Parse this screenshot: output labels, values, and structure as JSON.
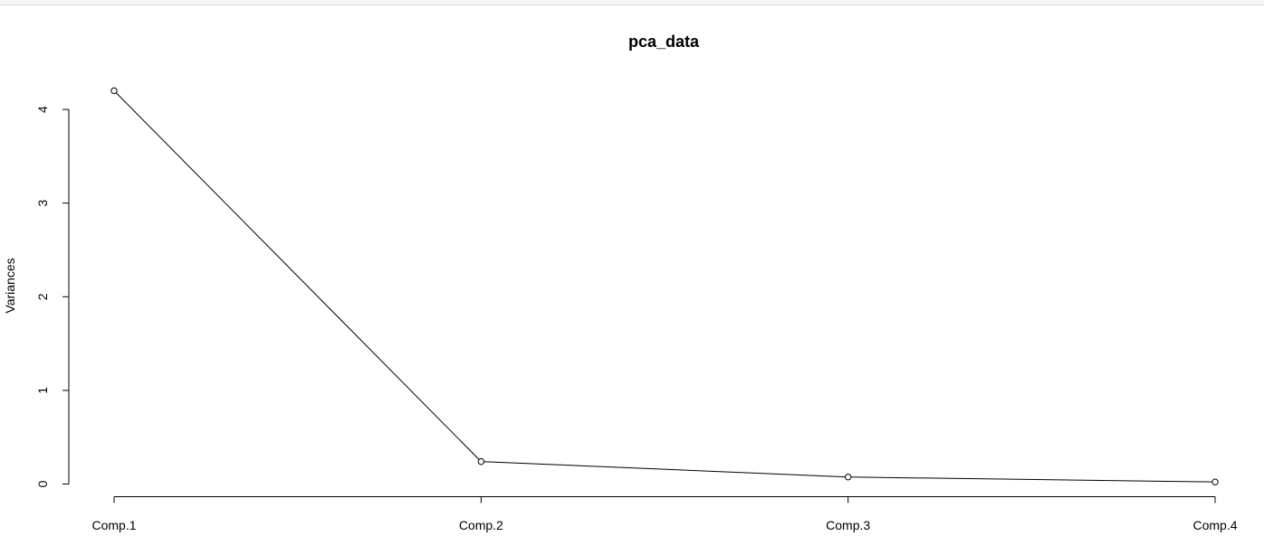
{
  "chart_data": {
    "type": "line",
    "title": "pca_data",
    "xlabel": "",
    "ylabel": "Variances",
    "categories": [
      "Comp.1",
      "Comp.2",
      "Comp.3",
      "Comp.4"
    ],
    "values": [
      4.2,
      0.24,
      0.075,
      0.022
    ],
    "yticks": [
      "0",
      "1",
      "2",
      "3",
      "4"
    ],
    "ylim": [
      0,
      4.2
    ],
    "grid": false,
    "legend": "none",
    "markers": "open-circle",
    "line_color": "#000000"
  }
}
